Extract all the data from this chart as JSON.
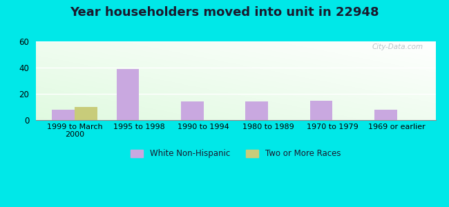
{
  "title": "Year householders moved into unit in 22948",
  "categories": [
    "1999 to March\n2000",
    "1995 to 1998",
    "1990 to 1994",
    "1980 to 1989",
    "1970 to 1979",
    "1969 or earlier"
  ],
  "white_non_hispanic": [
    8,
    39,
    14,
    14,
    15,
    8
  ],
  "two_or_more_races": [
    10,
    0,
    0,
    0,
    0,
    0
  ],
  "bar_color_white": "#c9a8e0",
  "bar_color_two": "#c8cc7a",
  "ylim": [
    0,
    60
  ],
  "yticks": [
    0,
    20,
    40,
    60
  ],
  "background_outer": "#00e8e8",
  "watermark": "City-Data.com",
  "legend_white": "White Non-Hispanic",
  "legend_two": "Two or More Races",
  "bar_width": 0.35,
  "title_fontsize": 13,
  "title_color": "#1a1a2e"
}
